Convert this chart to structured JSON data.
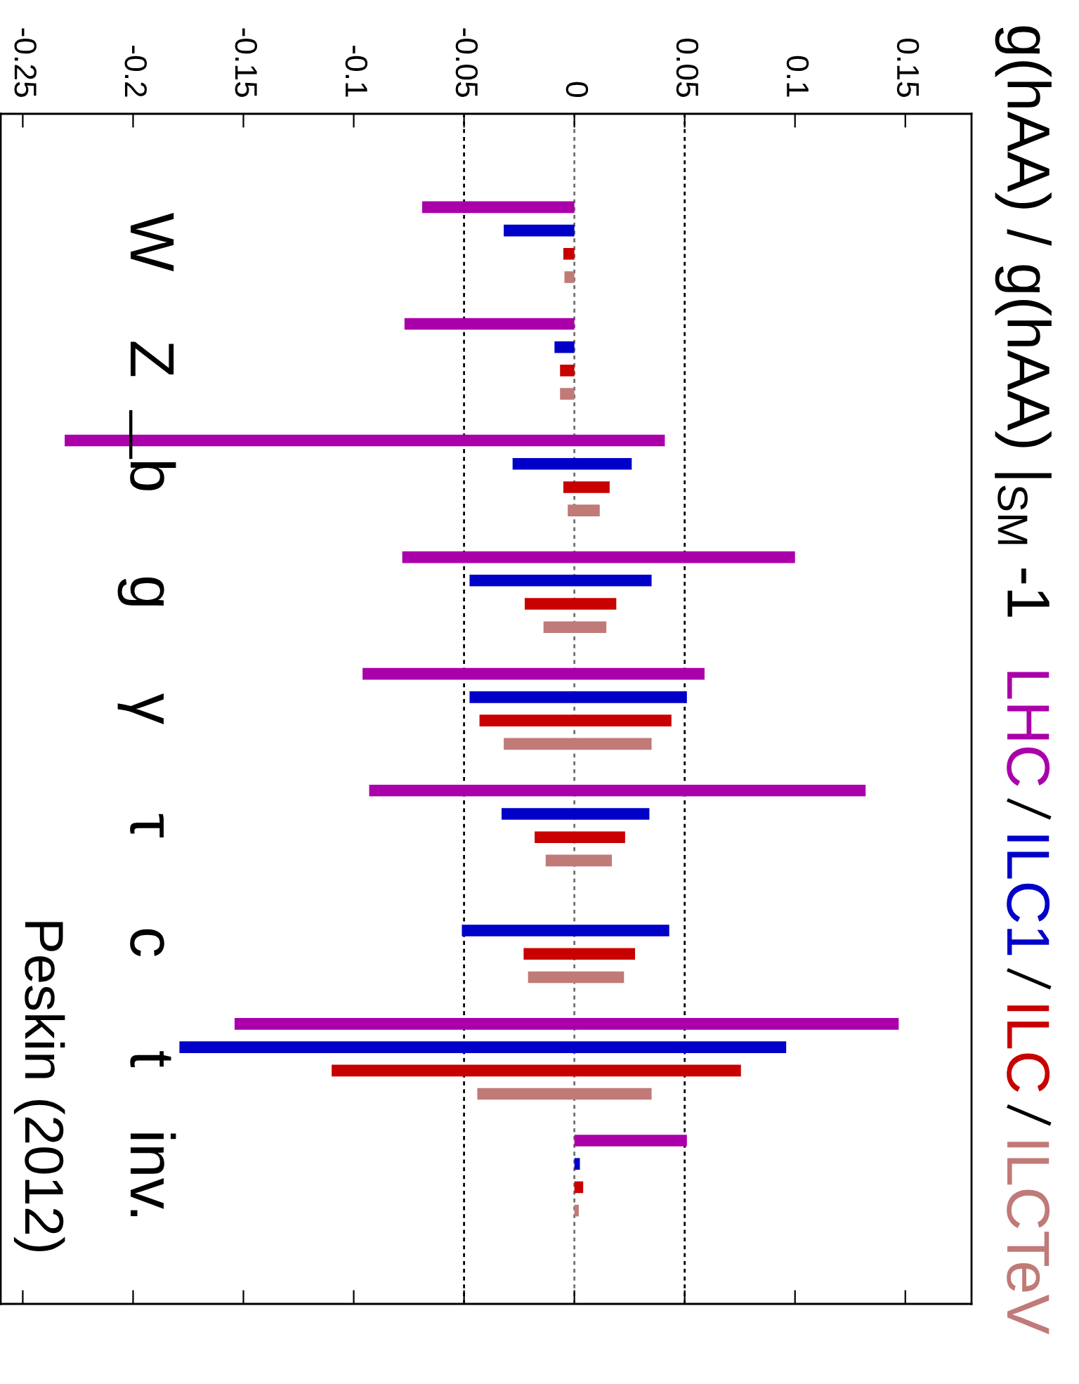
{
  "chart_data": {
    "type": "bar",
    "orientation": "horizontal",
    "title": "g(hAA) / g(hAA) |$_{SM}$ -1",
    "categories": [
      "W",
      "Z",
      "b",
      "g",
      "γ",
      "τ",
      "c",
      "t",
      "inv."
    ],
    "series": [
      {
        "name": "LHC",
        "color": "#aa00aa",
        "base": [
          -0.069,
          -0.077,
          -0.231,
          -0.078,
          -0.096,
          -0.093,
          null,
          -0.154,
          0
        ],
        "values": [
          0.069,
          0.077,
          0.272,
          0.178,
          0.155,
          0.225,
          null,
          0.301,
          0.051
        ]
      },
      {
        "name": "ILC1",
        "color": "#0000c8",
        "base": [
          -0.032,
          -0.009,
          -0.028,
          -0.0475,
          -0.0475,
          -0.033,
          -0.051,
          -0.179,
          0
        ],
        "values": [
          0.032,
          0.009,
          0.054,
          0.0825,
          0.0985,
          0.067,
          0.094,
          0.275,
          0.0025
        ]
      },
      {
        "name": "ILC",
        "color": "#c80000",
        "base": [
          -0.005,
          -0.0065,
          -0.005,
          -0.0225,
          -0.043,
          -0.018,
          -0.023,
          -0.11,
          0
        ],
        "values": [
          0.005,
          0.0065,
          0.021,
          0.0415,
          0.087,
          0.041,
          0.0505,
          0.1855,
          0.004
        ]
      },
      {
        "name": "ILCTeV",
        "color": "#c07a78",
        "base": [
          -0.0045,
          -0.0065,
          -0.003,
          -0.014,
          -0.032,
          -0.013,
          -0.021,
          -0.044,
          0
        ],
        "values": [
          0.0045,
          0.0065,
          0.0145,
          0.0285,
          0.067,
          0.03,
          0.0435,
          0.079,
          0.002
        ]
      }
    ],
    "xlim": [
      -0.26,
      0.18
    ],
    "xticks": [
      -0.25,
      -0.2,
      -0.15,
      -0.1,
      -0.05,
      0,
      0.05,
      0.1,
      0.15
    ],
    "ref_lines": [
      {
        "axis": "x",
        "value": -0.05,
        "color": "#000000",
        "line_style": "dotted"
      },
      {
        "axis": "x",
        "value": 0,
        "color": "#707070",
        "line_style": "dotted"
      },
      {
        "axis": "x",
        "value": 0.05,
        "color": "#000000",
        "line_style": "dotted"
      }
    ],
    "legend": "right",
    "annotations": [
      "Peskin (2012)"
    ]
  }
}
